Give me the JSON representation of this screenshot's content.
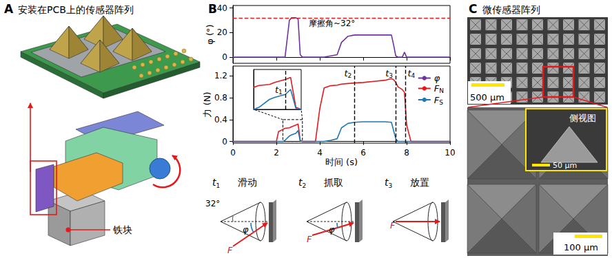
{
  "panels": {
    "A": {
      "label": "A",
      "title": "安装在PCB上的传感器阵列",
      "callout": "铁块"
    },
    "B": {
      "label": "B",
      "diagrams": [
        {
          "time": "t1",
          "caption": "滑动",
          "angle": "32°",
          "phi": "φ",
          "force": "F"
        },
        {
          "time": "t2",
          "caption": "抓取",
          "phi": "φ",
          "force": "F"
        },
        {
          "time": "t3",
          "caption": "放置",
          "force": "F"
        }
      ]
    },
    "C": {
      "label": "C",
      "title": "微传感器阵列",
      "scale_top": "500 µm",
      "inset_title": "侧视图",
      "scale_inset": "50 µm",
      "scale_bottom": "100 µm"
    }
  },
  "chart_data": [
    {
      "type": "line",
      "y_label": "φ (°)",
      "xlim": [
        0,
        10
      ],
      "xticks": [
        0,
        2,
        4,
        6,
        8,
        10
      ],
      "ylim": [
        -5,
        42
      ],
      "yticks": [
        0,
        20,
        40
      ],
      "tick_labels": "y",
      "grid": false,
      "x": [
        0,
        2.0,
        2.1,
        2.3,
        2.4,
        2.6,
        2.7,
        2.9,
        3.0,
        3.1,
        3.2,
        3.8,
        4.0,
        4.2,
        4.5,
        4.8,
        5.0,
        5.3,
        5.6,
        6.0,
        6.5,
        7.0,
        7.3,
        7.4,
        7.5,
        7.6,
        7.8,
        7.9,
        8.0,
        8.2,
        10
      ],
      "series": [
        {
          "name": "φ",
          "color": "#7030a0",
          "values": [
            0,
            0,
            0,
            0,
            0,
            30,
            32,
            32,
            31,
            2,
            0,
            0,
            0,
            0,
            1,
            2,
            12,
            17,
            18,
            18,
            18,
            18,
            18,
            10,
            1,
            0,
            0,
            4,
            0,
            0,
            0
          ]
        }
      ],
      "annotations": [
        {
          "text": "摩擦角~32°",
          "y": 32,
          "color": "#e31a1c",
          "line_style": "dashed"
        }
      ]
    },
    {
      "type": "line",
      "x_label": "时间 (s)",
      "y_label": "力 (N)",
      "xlim": [
        0,
        10
      ],
      "xticks": [
        0,
        2,
        4,
        6,
        8,
        10
      ],
      "ylim": [
        -0.03,
        1.38
      ],
      "yticks": [
        0,
        0.4,
        0.8,
        1.2
      ],
      "grid": false,
      "legend": "right",
      "x": [
        0,
        2.0,
        2.1,
        2.3,
        2.4,
        2.6,
        2.7,
        2.9,
        3.0,
        3.1,
        3.2,
        3.8,
        4.0,
        4.2,
        4.5,
        4.8,
        5.0,
        5.3,
        5.6,
        6.0,
        6.5,
        7.0,
        7.3,
        7.4,
        7.5,
        7.6,
        7.8,
        7.9,
        8.0,
        8.2,
        10
      ],
      "series": [
        {
          "name": "FN",
          "color": "#e31a1c",
          "values": [
            0,
            0,
            0.18,
            0.22,
            0.24,
            0.25,
            0.27,
            0.3,
            0.32,
            0.02,
            0,
            0,
            0.6,
            0.98,
            1.02,
            1.03,
            1.05,
            1.06,
            1.07,
            1.08,
            1.1,
            1.12,
            1.15,
            1.13,
            1.08,
            1.0,
            0.95,
            0.9,
            0.3,
            0,
            0
          ]
        },
        {
          "name": "FS",
          "color": "#1f78b4",
          "values": [
            0,
            0,
            0,
            0,
            0.02,
            0.1,
            0.12,
            0.15,
            0.2,
            0.01,
            0,
            0,
            0,
            0,
            0.02,
            0.05,
            0.25,
            0.33,
            0.35,
            0.36,
            0.36,
            0.36,
            0.35,
            0.2,
            0.05,
            0,
            0,
            0,
            0,
            0,
            0
          ]
        }
      ],
      "annotations": [
        {
          "text": "t2",
          "x": 5.6,
          "line_style": "dashed"
        },
        {
          "text": "t3",
          "x": 7.5,
          "line_style": "dashed"
        },
        {
          "text": "t4",
          "x": 7.95,
          "line_style": "dashed"
        }
      ]
    },
    {
      "type": "line",
      "xlim": [
        2.3,
        3.2
      ],
      "ylim": [
        0,
        0.4
      ],
      "tick_labels": false,
      "grid": false,
      "x": [
        2.3,
        2.4,
        2.6,
        2.7,
        2.9,
        3.0,
        3.1,
        3.2
      ],
      "series": [
        {
          "name": "FN",
          "color": "#e31a1c",
          "values": [
            0.22,
            0.24,
            0.25,
            0.27,
            0.3,
            0.32,
            0.02,
            0
          ]
        },
        {
          "name": "FS",
          "color": "#1f78b4",
          "values": [
            0,
            0.02,
            0.1,
            0.12,
            0.15,
            0.2,
            0.01,
            0
          ]
        }
      ],
      "annotations": [
        {
          "text": "t1",
          "x": 2.9,
          "line_style": "dashed"
        }
      ]
    }
  ]
}
